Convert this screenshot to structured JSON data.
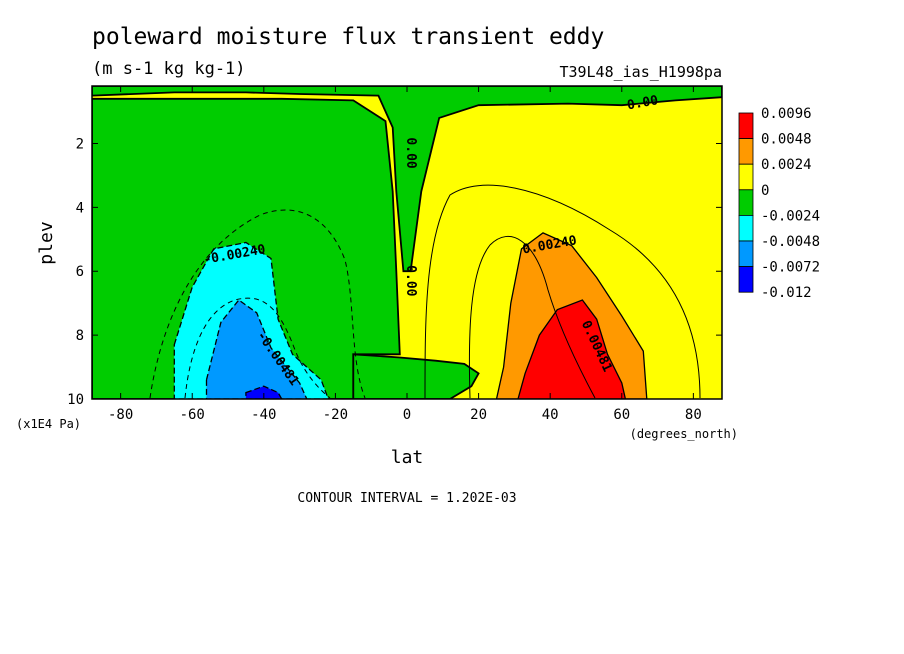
{
  "chart_data": {
    "type": "heatmap",
    "title": "poleward moisture flux transient eddy",
    "subtitle": "(m s-1 kg kg-1)",
    "run_id": "T39L48_ias_H1998pa",
    "xlabel": "lat",
    "ylabel": "plev",
    "x_units": "(degrees_north)",
    "y_units": "(x1E4 Pa)",
    "xlim": [
      -88,
      88
    ],
    "ylim": [
      10,
      0.2
    ],
    "x_ticks": [
      -80,
      -60,
      -40,
      -20,
      0,
      20,
      40,
      60,
      80
    ],
    "x_tick_labels": [
      "-80",
      "-60",
      "-40",
      "-20",
      "0",
      "20",
      "40",
      "60",
      "80"
    ],
    "y_ticks": [
      2,
      4,
      6,
      8,
      10
    ],
    "y_tick_labels": [
      "2",
      "4",
      "6",
      "8",
      "10"
    ],
    "contour_interval_text": "CONTOUR INTERVAL = 1.202E-03",
    "contour_labels": [
      {
        "text": "0.00",
        "lat": 66,
        "plev": 0.85
      },
      {
        "text": "0.00",
        "lat": 0,
        "plev": 2.3
      },
      {
        "text": "0.00",
        "lat": 0,
        "plev": 6.3
      },
      {
        "text": "-0.00240",
        "lat": -48,
        "plev": 5.6
      },
      {
        "text": "0.00240",
        "lat": 40,
        "plev": 5.3
      },
      {
        "text": "-0.00481",
        "lat": -37,
        "plev": 8.8
      },
      {
        "text": "0.00481",
        "lat": 52,
        "plev": 8.4
      }
    ],
    "legend": {
      "placement": "right",
      "levels": [
        "0.0096",
        "0.0048",
        "0.0024",
        "0",
        "-0.0024",
        "-0.0048",
        "-0.0072",
        "-0.012"
      ],
      "colors": [
        "#ff0000",
        "#ff9900",
        "#ffff00",
        "#00cc00",
        "#00ffff",
        "#0099ff",
        "#0000ff"
      ]
    },
    "regions": [
      {
        "name": "north-negative-band",
        "color": "#00cc00",
        "sign": "negative",
        "polygon": [
          [
            -88,
            0.5
          ],
          [
            -65,
            0.4
          ],
          [
            -45,
            0.4
          ],
          [
            -30,
            0.45
          ],
          [
            -8,
            0.5
          ],
          [
            -4,
            1.5
          ],
          [
            -3,
            3.5
          ],
          [
            -1,
            6
          ],
          [
            1,
            6
          ],
          [
            4,
            3.5
          ],
          [
            9,
            1.2
          ],
          [
            20,
            0.8
          ],
          [
            45,
            0.75
          ],
          [
            60,
            0.8
          ],
          [
            75,
            0.65
          ],
          [
            88,
            0.55
          ],
          [
            88,
            0.2
          ],
          [
            -88,
            0.2
          ]
        ]
      },
      {
        "name": "southern-negative-region",
        "color": "#00cc00",
        "sign": "negative",
        "polygon": [
          [
            -88,
            0.6
          ],
          [
            -60,
            0.6
          ],
          [
            -35,
            0.6
          ],
          [
            -15,
            0.65
          ],
          [
            -6,
            1.3
          ],
          [
            -4,
            3.5
          ],
          [
            -3,
            6
          ],
          [
            -2,
            8.6
          ],
          [
            -15,
            8.6
          ],
          [
            -15,
            10
          ],
          [
            -88,
            10
          ]
        ]
      },
      {
        "name": "equatorial-negative-patch",
        "color": "#00cc00",
        "sign": "negative",
        "polygon": [
          [
            -15,
            8.6
          ],
          [
            -2,
            8.7
          ],
          [
            8,
            8.8
          ],
          [
            16,
            8.9
          ],
          [
            20,
            9.2
          ],
          [
            18,
            9.6
          ],
          [
            12,
            10
          ],
          [
            -15,
            10
          ]
        ]
      },
      {
        "name": "sh-cyan",
        "color": "#00ffff",
        "sign": "negative",
        "polygon": [
          [
            -65,
            8.3
          ],
          [
            -60,
            6.5
          ],
          [
            -54,
            5.3
          ],
          [
            -45,
            5.1
          ],
          [
            -38,
            5.6
          ],
          [
            -36,
            7.5
          ],
          [
            -32,
            8.6
          ],
          [
            -24,
            9.4
          ],
          [
            -22,
            10
          ],
          [
            -65,
            10
          ]
        ]
      },
      {
        "name": "sh-blue-core",
        "color": "#0099ff",
        "sign": "negative",
        "polygon": [
          [
            -56,
            9.4
          ],
          [
            -52,
            7.6
          ],
          [
            -47,
            6.9
          ],
          [
            -42,
            7.3
          ],
          [
            -38,
            8.4
          ],
          [
            -30,
            9.5
          ],
          [
            -28,
            10
          ],
          [
            -56,
            10
          ]
        ]
      },
      {
        "name": "sh-dark-blue-core",
        "color": "#0000ff",
        "sign": "negative",
        "polygon": [
          [
            -45,
            9.8
          ],
          [
            -40,
            9.6
          ],
          [
            -36,
            9.8
          ],
          [
            -35,
            10
          ],
          [
            -45,
            10
          ]
        ]
      },
      {
        "name": "nh-orange",
        "color": "#ff9900",
        "sign": "positive",
        "polygon": [
          [
            25,
            10
          ],
          [
            27,
            9
          ],
          [
            29,
            7
          ],
          [
            32,
            5.3
          ],
          [
            38,
            4.8
          ],
          [
            46,
            5.2
          ],
          [
            53,
            6.2
          ],
          [
            60,
            7.4
          ],
          [
            66,
            8.5
          ],
          [
            67,
            10
          ]
        ]
      },
      {
        "name": "nh-red-core",
        "color": "#ff0000",
        "sign": "positive",
        "polygon": [
          [
            31,
            10
          ],
          [
            33,
            9.2
          ],
          [
            37,
            8
          ],
          [
            42,
            7.2
          ],
          [
            49,
            6.9
          ],
          [
            53,
            7.5
          ],
          [
            56,
            8.6
          ],
          [
            60,
            9.5
          ],
          [
            61,
            10
          ]
        ]
      }
    ]
  }
}
